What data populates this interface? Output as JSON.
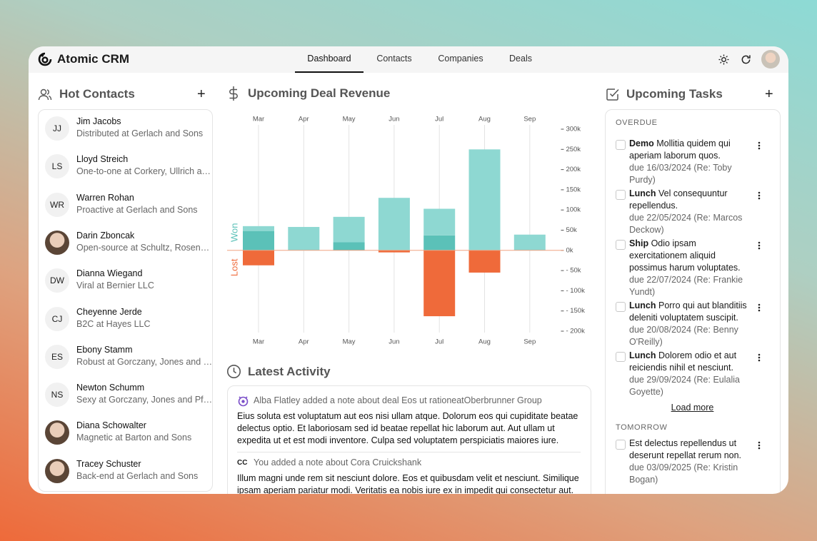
{
  "app": {
    "name": "Atomic CRM"
  },
  "nav": [
    "Dashboard",
    "Contacts",
    "Companies",
    "Deals"
  ],
  "hot_contacts": {
    "title": "Hot Contacts",
    "items": [
      {
        "initials": "JJ",
        "name": "Jim Jacobs",
        "subtitle": "Distributed at Gerlach and Sons"
      },
      {
        "initials": "LS",
        "name": "Lloyd Streich",
        "subtitle": "One-to-one at Corkery, Ullrich a…"
      },
      {
        "initials": "WR",
        "name": "Warren Rohan",
        "subtitle": "Proactive at Gerlach and Sons"
      },
      {
        "name": "Darin Zboncak",
        "subtitle": "Open-source at Schultz, Rosen…"
      },
      {
        "initials": "DW",
        "name": "Dianna Wiegand",
        "subtitle": "Viral at Bernier LLC"
      },
      {
        "initials": "CJ",
        "name": "Cheyenne Jerde",
        "subtitle": "B2C at Hayes LLC"
      },
      {
        "initials": "ES",
        "name": "Ebony Stamm",
        "subtitle": "Robust at Gorczany, Jones and …"
      },
      {
        "initials": "NS",
        "name": "Newton Schumm",
        "subtitle": "Sexy at Gorczany, Jones and Pf…"
      },
      {
        "name": "Diana Schowalter",
        "subtitle": "Magnetic at Barton and Sons"
      },
      {
        "name": "Tracey Schuster",
        "subtitle": "Back-end at Gerlach and Sons"
      }
    ]
  },
  "chart_data": {
    "type": "bar",
    "title": "Upcoming Deal Revenue",
    "categories": [
      "Mar",
      "Apr",
      "May",
      "Jun",
      "Jul",
      "Aug",
      "Sep"
    ],
    "series": [
      {
        "color": "#5bc1b8",
        "values": [
          48000,
          0,
          20000,
          0,
          37000,
          0,
          0
        ]
      },
      {
        "color": "#8ed8d2",
        "values": [
          12000,
          58000,
          63000,
          130000,
          66000,
          250000,
          39000
        ]
      },
      {
        "color": "#ef6a3a",
        "values": [
          -37000,
          0,
          0,
          -5000,
          -163000,
          -55000,
          0
        ]
      }
    ],
    "won_label": "Won",
    "lost_label": "Lost",
    "ylim": [
      -200000,
      300000
    ],
    "yticks": [
      {
        "value": 300000,
        "label": "300k"
      },
      {
        "value": 250000,
        "label": "250k"
      },
      {
        "value": 200000,
        "label": "200k"
      },
      {
        "value": 150000,
        "label": "150k"
      },
      {
        "value": 100000,
        "label": "100k"
      },
      {
        "value": 50000,
        "label": "50k"
      },
      {
        "value": 0,
        "label": "0k"
      },
      {
        "value": -50000,
        "label": "- 50k"
      },
      {
        "value": -100000,
        "label": "- 100k"
      },
      {
        "value": -150000,
        "label": "- 150k"
      },
      {
        "value": -200000,
        "label": "- 200k"
      }
    ],
    "stacked": true,
    "grid": true
  },
  "latest_activity": {
    "title": "Latest Activity",
    "items": [
      {
        "header": "Alba Flatley added a note about deal Eos ut rationeatOberbrunner Group",
        "body": "Eius soluta est voluptatum aut eos nisi ullam atque. Dolorum eos qui cupiditate beatae delectus optio. Et laboriosam sed id beatae repellat hic laborum aut. Aut ullam ut expedita ut et est modi inventore. Culpa sed voluptatem perspiciatis maiores iure. Veritatis repellat ex …"
      },
      {
        "initials": "CC",
        "header": "You added a note about Cora Cruickshank",
        "body": "Illum magni unde rem sit nesciunt dolore. Eos et quibusdam velit et nesciunt. Similique ipsam aperiam pariatur modi. Veritatis ea nobis iure ex in impedit qui consectetur aut. Beatae quas"
      }
    ]
  },
  "tasks": {
    "title": "Upcoming Tasks",
    "groups": [
      {
        "label": "OVERDUE",
        "items": [
          {
            "type": "Demo",
            "text": "Mollitia quidem qui aperiam laborum quos.",
            "due": "due 16/03/2024 (Re: Toby Purdy)"
          },
          {
            "type": "Lunch",
            "text": "Vel consequuntur repellendus.",
            "due": "due 22/05/2024 (Re: Marcos Deckow)"
          },
          {
            "type": "Ship",
            "text": "Odio ipsam exercitationem aliquid possimus harum voluptates.",
            "due": "due 22/07/2024 (Re: Frankie Yundt)"
          },
          {
            "type": "Lunch",
            "text": "Porro qui aut blanditiis deleniti voluptatem suscipit.",
            "due": "due 20/08/2024 (Re: Benny O'Reilly)"
          },
          {
            "type": "Lunch",
            "text": "Dolorem odio et aut reiciendis nihil et nesciunt.",
            "due": "due 29/09/2024 (Re: Eulalia Goyette)"
          }
        ],
        "more": "Load more"
      },
      {
        "label": "TOMORROW",
        "items": [
          {
            "text": "Est delectus repellendus ut deserunt repellat rerum non.",
            "due": "due 03/09/2025 (Re: Kristin Bogan)"
          }
        ]
      }
    ]
  }
}
